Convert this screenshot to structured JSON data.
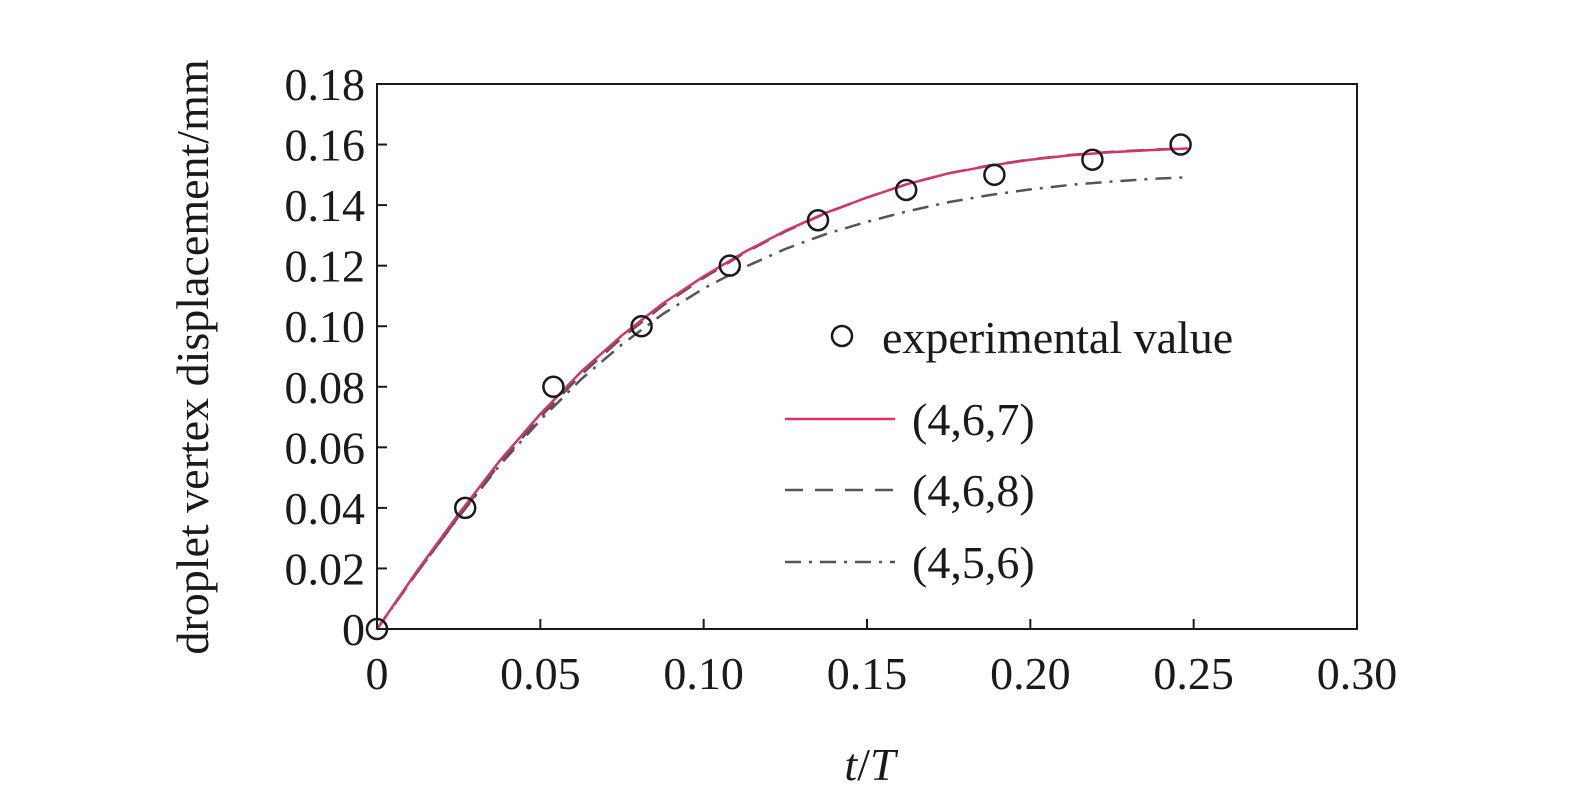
{
  "chart_data": {
    "type": "line",
    "title": "",
    "xlabel": {
      "var1": "t",
      "sep": "/",
      "var2": "T"
    },
    "ylabel": "droplet vertex displacement/mm",
    "xlim": [
      0,
      0.3
    ],
    "ylim": [
      0,
      0.18
    ],
    "x_ticks": [
      0,
      0.05,
      0.1,
      0.15,
      0.2,
      0.25,
      0.3
    ],
    "x_tick_labels": [
      "0",
      "0.05",
      "0.10",
      "0.15",
      "0.20",
      "0.25",
      "0.30"
    ],
    "y_ticks": [
      0,
      0.02,
      0.04,
      0.06,
      0.08,
      0.1,
      0.12,
      0.14,
      0.16,
      0.18
    ],
    "y_tick_labels": [
      "0",
      "0.02",
      "0.04",
      "0.06",
      "0.08",
      "0.10",
      "0.12",
      "0.14",
      "0.16",
      "0.18"
    ],
    "grid": false,
    "legend_position": "right",
    "series": [
      {
        "name": "experimental value",
        "style": "markers",
        "color": "#1a1a1a",
        "x": [
          0,
          0.027,
          0.054,
          0.081,
          0.108,
          0.135,
          0.162,
          0.189,
          0.219,
          0.246
        ],
        "y": [
          0,
          0.04,
          0.08,
          0.1,
          0.12,
          0.135,
          0.145,
          0.15,
          0.155,
          0.16
        ]
      },
      {
        "name": "(4,6,7)",
        "style": "solid",
        "color": "#d6336c",
        "x": [
          0,
          0.0125,
          0.025,
          0.0375,
          0.05,
          0.0625,
          0.075,
          0.0875,
          0.1,
          0.1125,
          0.125,
          0.1375,
          0.15,
          0.1625,
          0.175,
          0.1875,
          0.2,
          0.2125,
          0.225,
          0.2375,
          0.248
        ],
        "y": [
          0,
          0.0195,
          0.038,
          0.0555,
          0.071,
          0.085,
          0.097,
          0.1075,
          0.1165,
          0.1245,
          0.1315,
          0.1375,
          0.1425,
          0.147,
          0.1505,
          0.153,
          0.155,
          0.1565,
          0.1575,
          0.1582,
          0.1587
        ]
      },
      {
        "name": "(4,6,8)",
        "style": "dashed",
        "color": "#555555",
        "x": [
          0,
          0.0125,
          0.025,
          0.0375,
          0.05,
          0.0625,
          0.075,
          0.0875,
          0.1,
          0.1125,
          0.125,
          0.1375,
          0.15,
          0.1625,
          0.175,
          0.1875,
          0.2,
          0.2125,
          0.225,
          0.2375,
          0.248
        ],
        "y": [
          0,
          0.019,
          0.0372,
          0.0545,
          0.07,
          0.084,
          0.0962,
          0.1068,
          0.116,
          0.1242,
          0.1313,
          0.1374,
          0.1425,
          0.147,
          0.1505,
          0.1531,
          0.1551,
          0.1566,
          0.1576,
          0.1583,
          0.1588
        ]
      },
      {
        "name": "(4,5,6)",
        "style": "dashdot",
        "color": "#555555",
        "x": [
          0,
          0.0125,
          0.025,
          0.0375,
          0.05,
          0.0625,
          0.075,
          0.0875,
          0.1,
          0.1125,
          0.125,
          0.1375,
          0.15,
          0.1625,
          0.175,
          0.1875,
          0.2,
          0.2125,
          0.225,
          0.2375,
          0.248
        ],
        "y": [
          0,
          0.019,
          0.037,
          0.054,
          0.069,
          0.0825,
          0.094,
          0.104,
          0.1125,
          0.1195,
          0.1255,
          0.1305,
          0.1345,
          0.138,
          0.141,
          0.1433,
          0.1452,
          0.1467,
          0.1478,
          0.1487,
          0.1492
        ]
      }
    ]
  }
}
